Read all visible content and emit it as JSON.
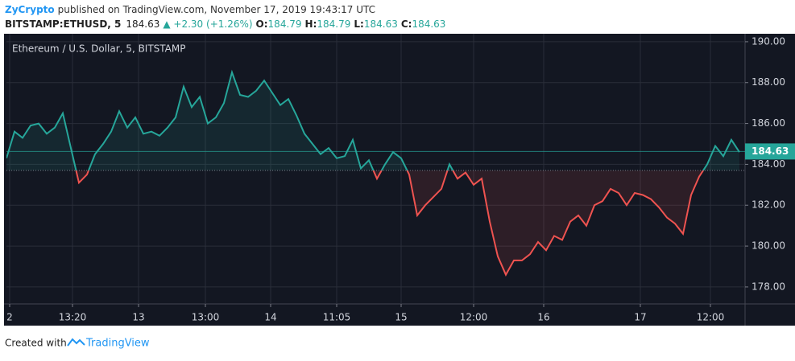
{
  "header": {
    "author": "ZyCrypto",
    "published": "published on TradingView.com, November 17, 2019 19:43:17 UTC",
    "symbol": "BITSTAMP:ETHUSD, 5",
    "last": "184.63",
    "change": "▲ +2.30 (+1.26%)",
    "o_label": "O:",
    "o": "184.79",
    "h_label": "H:",
    "h": "184.79",
    "l_label": "L:",
    "l": "184.63",
    "c_label": "C:",
    "c": "184.63"
  },
  "footer": {
    "created": "Created with",
    "brand": "TradingView"
  },
  "chart_data": {
    "type": "line",
    "title": "Ethereum / U.S. Dollar, 5, BITSTAMP",
    "x": [
      0,
      1,
      2,
      3,
      4,
      5,
      6,
      7,
      8,
      9,
      10,
      11,
      12,
      13,
      14,
      15,
      16,
      17,
      18,
      19,
      20,
      21,
      22,
      23,
      24,
      25,
      26,
      27,
      28,
      29,
      30,
      31,
      32,
      33,
      34,
      35,
      36,
      37,
      38,
      39,
      40,
      41,
      42,
      43,
      44,
      45,
      46,
      47,
      48,
      49,
      50,
      51,
      52,
      53,
      54,
      55,
      56,
      57,
      58,
      59,
      60,
      61,
      62,
      63,
      64,
      65,
      66,
      67,
      68,
      69,
      70,
      71,
      72,
      73,
      74,
      75,
      76,
      77,
      78,
      79,
      80,
      81,
      82,
      83,
      84,
      85,
      86,
      87,
      88,
      89,
      90,
      91
    ],
    "series": [
      {
        "name": "ETHUSD",
        "up_color": "#26a69a",
        "down_color": "#ef5350",
        "values": [
          184.3,
          185.6,
          185.3,
          185.9,
          186.0,
          185.5,
          185.8,
          186.5,
          184.8,
          183.1,
          183.5,
          184.5,
          185.0,
          185.6,
          186.6,
          185.8,
          186.3,
          185.5,
          185.6,
          185.4,
          185.8,
          186.3,
          187.8,
          186.8,
          187.3,
          186.0,
          186.3,
          187.0,
          188.5,
          187.4,
          187.3,
          187.6,
          188.1,
          187.5,
          186.9,
          187.2,
          186.4,
          185.5,
          185.0,
          184.5,
          184.8,
          184.3,
          184.4,
          185.2,
          183.8,
          184.2,
          183.3,
          184.0,
          184.6,
          184.3,
          183.5,
          181.5,
          182.0,
          182.4,
          182.8,
          184.0,
          183.3,
          183.6,
          183.0,
          183.3,
          181.2,
          179.5,
          178.6,
          179.3,
          179.3,
          179.6,
          180.2,
          179.8,
          180.5,
          180.3,
          181.2,
          181.5,
          181.0,
          182.0,
          182.2,
          182.8,
          182.6,
          182.0,
          182.6,
          182.5,
          182.3,
          181.9,
          181.4,
          181.1,
          180.6,
          182.5,
          183.4,
          184.0,
          184.9,
          184.4,
          185.2,
          184.6
        ]
      }
    ],
    "baseline": 183.7,
    "last_price": 184.63,
    "xlim": [
      0,
      91.7
    ],
    "xticks": [
      {
        "value": 0.4,
        "label": "2"
      },
      {
        "value": 8.2,
        "label": "13:20"
      },
      {
        "value": 16.4,
        "label": "13"
      },
      {
        "value": 24.7,
        "label": "13:00"
      },
      {
        "value": 32.8,
        "label": "14"
      },
      {
        "value": 41,
        "label": "11:05"
      },
      {
        "value": 49,
        "label": "15"
      },
      {
        "value": 58,
        "label": "12:00"
      },
      {
        "value": 66.7,
        "label": "16"
      },
      {
        "value": 78.7,
        "label": "17"
      },
      {
        "value": 87.4,
        "label": "12:00"
      }
    ],
    "ylim": [
      177.17,
      190.39
    ],
    "yticks": [
      {
        "value": 178,
        "label": "178.00"
      },
      {
        "value": 180,
        "label": "180.00"
      },
      {
        "value": 182,
        "label": "182.00"
      },
      {
        "value": 184,
        "label": "184.00"
      },
      {
        "value": 186,
        "label": "186.00"
      },
      {
        "value": 188,
        "label": "188.00"
      },
      {
        "value": 190,
        "label": "190.00"
      }
    ],
    "grid": true
  }
}
